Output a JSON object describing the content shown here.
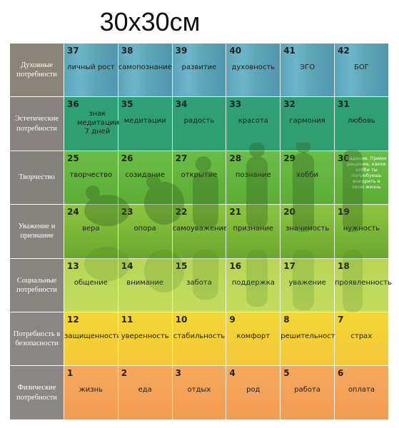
{
  "title": "30х30см",
  "rows": [
    {
      "label": "Духовные потребности",
      "cells": [
        {
          "num": "37",
          "text": "личный рост"
        },
        {
          "num": "38",
          "text": "самопознание"
        },
        {
          "num": "39",
          "text": "развитие"
        },
        {
          "num": "40",
          "text": "духовность"
        },
        {
          "num": "41",
          "text": "ЭГО"
        },
        {
          "num": "42",
          "text": "БОГ"
        }
      ]
    },
    {
      "label": "Эстетические потребности",
      "cells": [
        {
          "num": "36",
          "text": "знак медитации 7 дней"
        },
        {
          "num": "35",
          "text": "медитации"
        },
        {
          "num": "34",
          "text": "радость"
        },
        {
          "num": "33",
          "text": "красота"
        },
        {
          "num": "32",
          "text": "гармония"
        },
        {
          "num": "31",
          "text": "любовь"
        }
      ]
    },
    {
      "label": "Творчество",
      "cells": [
        {
          "num": "25",
          "text": "творчество"
        },
        {
          "num": "26",
          "text": "созидание"
        },
        {
          "num": "27",
          "text": "открытие"
        },
        {
          "num": "28",
          "text": "познание"
        },
        {
          "num": "29",
          "text": "хобби"
        },
        {
          "num": "30",
          "text": "",
          "note": "Задание. Прими решение, какое хобби ты попробуешь внедрить в свою жизнь"
        }
      ]
    },
    {
      "label": "Уважение и признание",
      "cells": [
        {
          "num": "24",
          "text": "вера"
        },
        {
          "num": "23",
          "text": "опора"
        },
        {
          "num": "22",
          "text": "самоуважение"
        },
        {
          "num": "21",
          "text": "признание"
        },
        {
          "num": "20",
          "text": "значимость"
        },
        {
          "num": "19",
          "text": "нужность"
        }
      ]
    },
    {
      "label": "Социальные потребности",
      "cells": [
        {
          "num": "13",
          "text": "общение"
        },
        {
          "num": "14",
          "text": "внимание"
        },
        {
          "num": "15",
          "text": "забота"
        },
        {
          "num": "16",
          "text": "поддержка"
        },
        {
          "num": "17",
          "text": "уважение"
        },
        {
          "num": "18",
          "text": "проявленность"
        }
      ]
    },
    {
      "label": "Потребность в безопасности",
      "cells": [
        {
          "num": "12",
          "text": "защищенность"
        },
        {
          "num": "11",
          "text": "уверенность"
        },
        {
          "num": "10",
          "text": "стабильность"
        },
        {
          "num": "9",
          "text": "комфорт"
        },
        {
          "num": "8",
          "text": "решительность"
        },
        {
          "num": "7",
          "text": "страх"
        }
      ]
    },
    {
      "label": "Физические потребности",
      "cells": [
        {
          "num": "1",
          "text": "жизнь"
        },
        {
          "num": "2",
          "text": "еда"
        },
        {
          "num": "3",
          "text": "отдых"
        },
        {
          "num": "4",
          "text": "род"
        },
        {
          "num": "5",
          "text": "работа"
        },
        {
          "num": "6",
          "text": "оплата"
        }
      ]
    }
  ]
}
